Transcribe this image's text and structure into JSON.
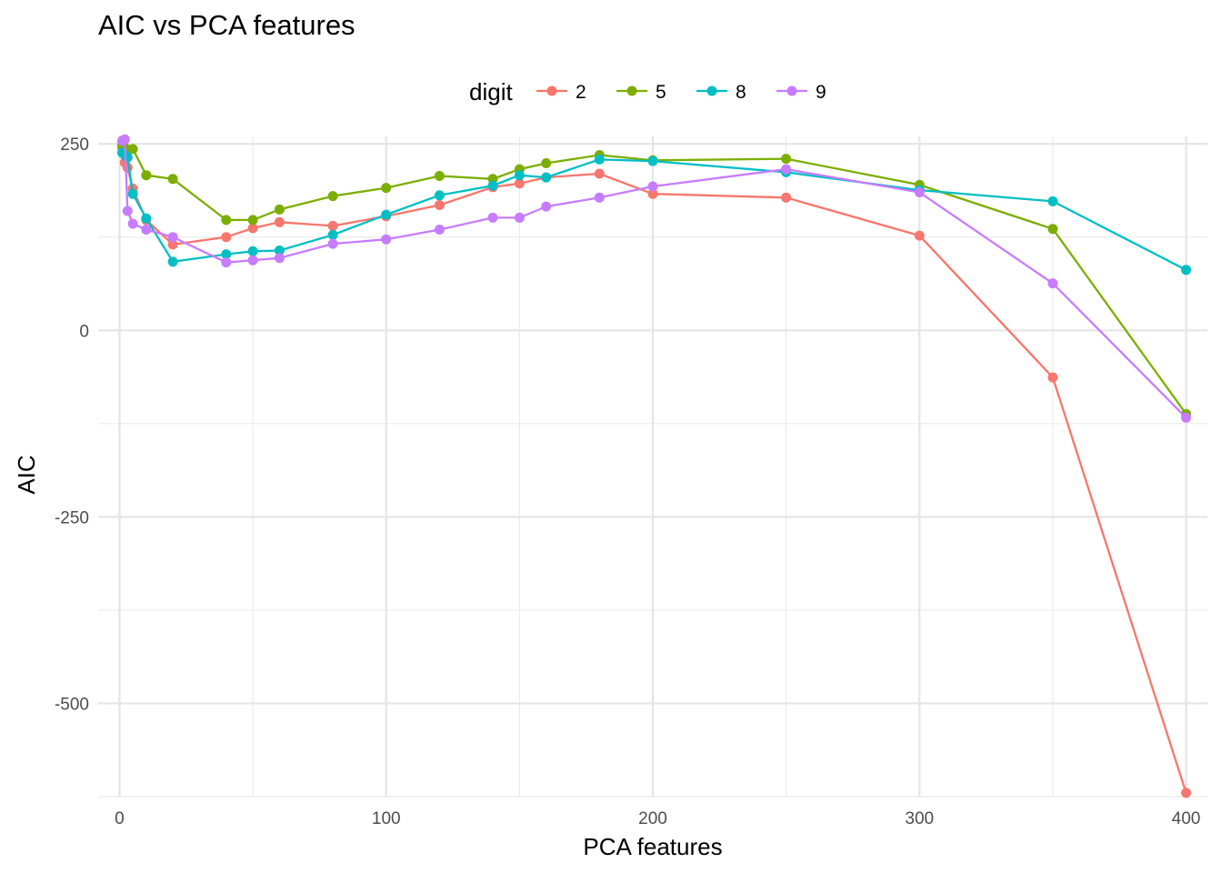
{
  "chart_data": {
    "type": "line",
    "title": "AIC vs PCA features",
    "xlabel": "PCA features",
    "ylabel": "AIC",
    "xlim": [
      -8,
      408
    ],
    "ylim": [
      -625,
      260
    ],
    "x_ticks": [
      0,
      100,
      200,
      300,
      400
    ],
    "x_tick_labels": [
      "0",
      "100",
      "200",
      "300",
      "400"
    ],
    "y_ticks": [
      250,
      0,
      -250,
      -500
    ],
    "y_tick_labels": [
      "250",
      "0",
      "-250",
      "-500"
    ],
    "grid": true,
    "legend": {
      "title": "digit",
      "position": "top",
      "entries": [
        "2",
        "5",
        "8",
        "9"
      ]
    },
    "series": [
      {
        "name": "2",
        "color": "#F8766D",
        "points": [
          [
            1,
            245
          ],
          [
            2,
            225
          ],
          [
            3,
            218
          ],
          [
            5,
            190
          ],
          [
            10,
            148
          ],
          [
            20,
            115
          ],
          [
            40,
            125
          ],
          [
            50,
            137
          ],
          [
            60,
            145
          ],
          [
            80,
            140
          ],
          [
            100,
            153
          ],
          [
            120,
            168
          ],
          [
            140,
            192
          ],
          [
            150,
            197
          ],
          [
            160,
            205
          ],
          [
            180,
            210
          ],
          [
            200,
            183
          ],
          [
            250,
            178
          ],
          [
            300,
            127
          ],
          [
            350,
            -63
          ],
          [
            400,
            -620
          ]
        ]
      },
      {
        "name": "5",
        "color": "#7CAE00",
        "points": [
          [
            1,
            248
          ],
          [
            2,
            245
          ],
          [
            3,
            240
          ],
          [
            5,
            243
          ],
          [
            10,
            208
          ],
          [
            20,
            203
          ],
          [
            40,
            148
          ],
          [
            50,
            148
          ],
          [
            60,
            162
          ],
          [
            80,
            180
          ],
          [
            100,
            191
          ],
          [
            120,
            207
          ],
          [
            140,
            203
          ],
          [
            150,
            216
          ],
          [
            160,
            224
          ],
          [
            180,
            235
          ],
          [
            200,
            228
          ],
          [
            250,
            230
          ],
          [
            300,
            195
          ],
          [
            350,
            136
          ],
          [
            400,
            -112
          ]
        ]
      },
      {
        "name": "8",
        "color": "#00BFC4",
        "points": [
          [
            1,
            238
          ],
          [
            2,
            235
          ],
          [
            3,
            232
          ],
          [
            5,
            183
          ],
          [
            10,
            150
          ],
          [
            20,
            92
          ],
          [
            40,
            102
          ],
          [
            50,
            106
          ],
          [
            60,
            107
          ],
          [
            80,
            128
          ],
          [
            100,
            155
          ],
          [
            120,
            181
          ],
          [
            140,
            194
          ],
          [
            150,
            208
          ],
          [
            160,
            205
          ],
          [
            180,
            229
          ],
          [
            200,
            227
          ],
          [
            250,
            212
          ],
          [
            300,
            188
          ],
          [
            350,
            173
          ],
          [
            400,
            81
          ]
        ]
      },
      {
        "name": "9",
        "color": "#C77CFF",
        "points": [
          [
            1,
            254
          ],
          [
            2,
            256
          ],
          [
            3,
            160
          ],
          [
            5,
            143
          ],
          [
            10,
            135
          ],
          [
            20,
            125
          ],
          [
            40,
            91
          ],
          [
            50,
            94
          ],
          [
            60,
            97
          ],
          [
            80,
            116
          ],
          [
            100,
            122
          ],
          [
            120,
            135
          ],
          [
            140,
            151
          ],
          [
            150,
            151
          ],
          [
            160,
            166
          ],
          [
            180,
            178
          ],
          [
            200,
            193
          ],
          [
            250,
            216
          ],
          [
            300,
            185
          ],
          [
            350,
            63
          ],
          [
            400,
            -117
          ]
        ]
      }
    ]
  }
}
